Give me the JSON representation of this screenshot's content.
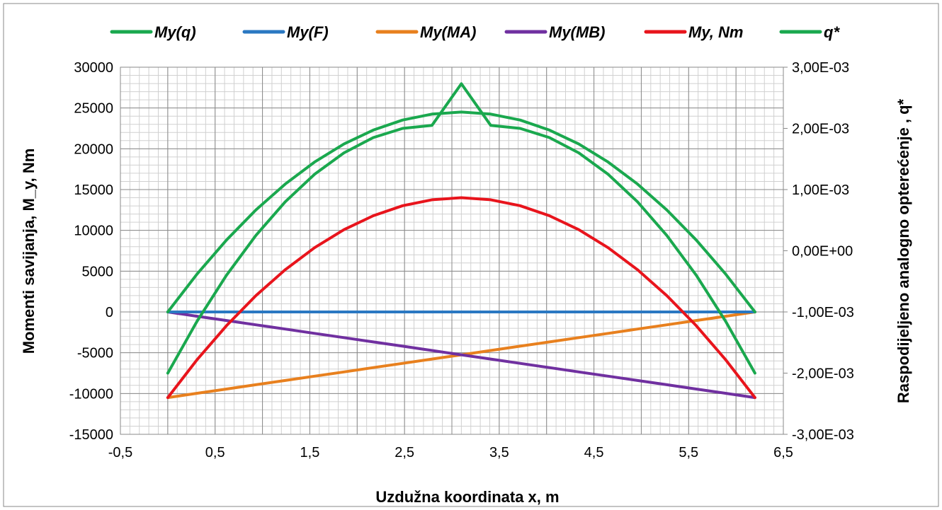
{
  "chart_data": {
    "type": "line",
    "xlabel": "Uzdužna koordinata x, m",
    "ylabel": "Momenti savijanja, M_y, Nm",
    "y2label": "Raspodijeljeno analogno opterećenje , q*",
    "xlim": [
      -0.5,
      6.5
    ],
    "ylim": [
      -15000,
      30000
    ],
    "y2lim": [
      -0.003,
      0.003
    ],
    "grid": true,
    "legend_position": "top",
    "x_ticks": [
      "-0,5",
      "0,5",
      "1,5",
      "2,5",
      "3,5",
      "4,5",
      "5,5",
      "6,5"
    ],
    "y_ticks": [
      "-15000",
      "-10000",
      "-5000",
      "0",
      "5000",
      "10000",
      "15000",
      "20000",
      "25000",
      "30000"
    ],
    "y2_ticks": [
      "-3,00E-03",
      "-2,00E-03",
      "-1,00E-03",
      "0,00E+00",
      "1,00E-03",
      "2,00E-03",
      "3,00E-03"
    ],
    "x": [
      0,
      0.31,
      0.62,
      0.93,
      1.24,
      1.55,
      1.86,
      2.17,
      2.48,
      2.79,
      3.1,
      3.41,
      3.72,
      4.03,
      4.34,
      4.65,
      4.96,
      5.27,
      5.58,
      5.89,
      6.2
    ],
    "series": [
      {
        "name": "My(q)",
        "axis": "left",
        "color": "#1aa84e",
        "values": [
          0,
          4655,
          8820,
          12495,
          15680,
          18375,
          20580,
          22295,
          23520,
          24255,
          24500,
          24255,
          23520,
          22295,
          20580,
          18375,
          15680,
          12495,
          8820,
          4655,
          0
        ]
      },
      {
        "name": "My(F)",
        "axis": "left",
        "color": "#2a78c2",
        "values": [
          0,
          0,
          0,
          0,
          0,
          0,
          0,
          0,
          0,
          0,
          0,
          0,
          0,
          0,
          0,
          0,
          0,
          0,
          0,
          0,
          0
        ]
      },
      {
        "name": "My(MA)",
        "axis": "left",
        "color": "#e8801e",
        "values": [
          -10500,
          -9975,
          -9450,
          -8925,
          -8400,
          -7875,
          -7350,
          -6825,
          -6300,
          -5775,
          -5250,
          -4725,
          -4200,
          -3675,
          -3150,
          -2625,
          -2100,
          -1575,
          -1050,
          -525,
          0
        ]
      },
      {
        "name": "My(MB)",
        "axis": "left",
        "color": "#7030a0",
        "values": [
          0,
          -525,
          -1050,
          -1575,
          -2100,
          -2625,
          -3150,
          -3675,
          -4200,
          -4725,
          -5250,
          -5775,
          -6300,
          -6825,
          -7350,
          -7875,
          -8400,
          -8925,
          -9450,
          -9975,
          -10500
        ]
      },
      {
        "name": "My, Nm",
        "axis": "left",
        "color": "#e8141c",
        "values": [
          -10500,
          -5845,
          -1680,
          1995,
          5180,
          7875,
          10080,
          11795,
          13020,
          13755,
          14000,
          13755,
          13020,
          11795,
          10080,
          7875,
          5180,
          1995,
          -1680,
          -5845,
          -10500
        ]
      },
      {
        "name": "q*",
        "axis": "right",
        "color": "#1aa84e",
        "values": [
          -0.002,
          -0.00115,
          -0.0004,
          0.00025,
          0.0008,
          0.00125,
          0.0016,
          0.00185,
          0.002,
          0.00205,
          0.00273,
          0.00205,
          0.002,
          0.00185,
          0.0016,
          0.00125,
          0.0008,
          0.00025,
          -0.0004,
          -0.00115,
          -0.002
        ]
      }
    ]
  }
}
